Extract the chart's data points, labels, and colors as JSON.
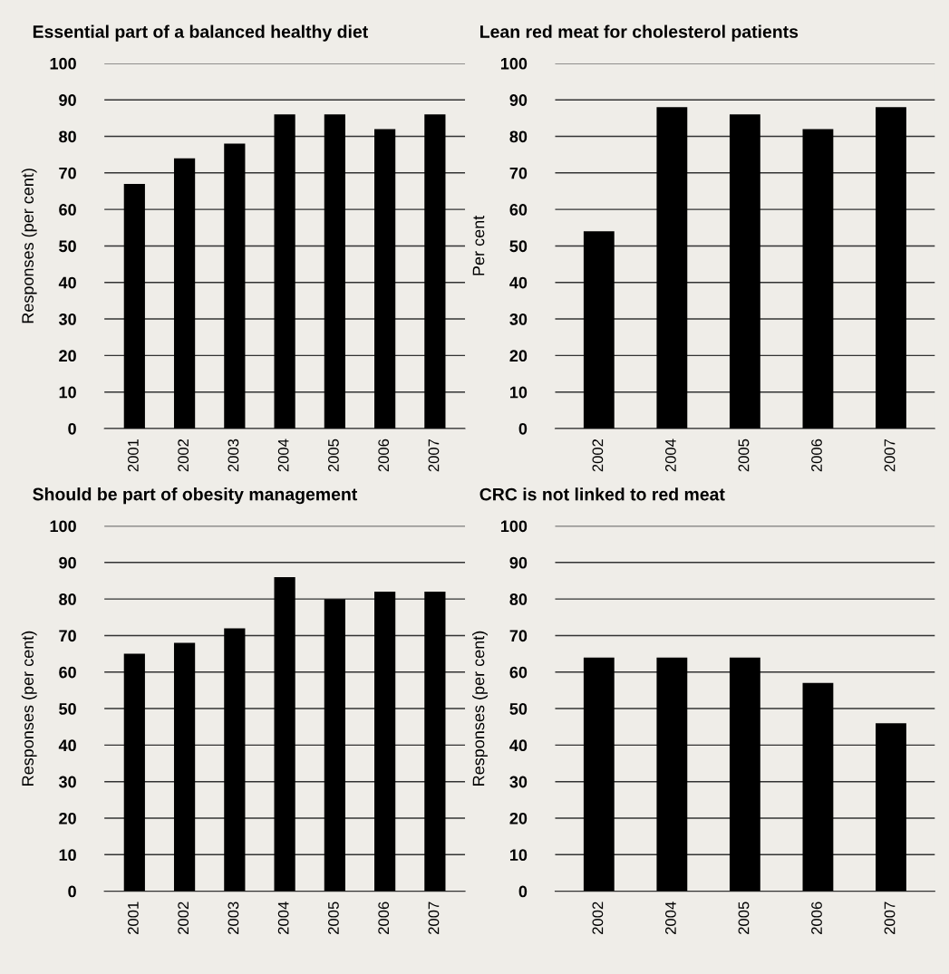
{
  "chart_data": [
    {
      "type": "bar",
      "title": "Essential part of a balanced healthy diet",
      "ylabel": "Responses (per cent)",
      "categories": [
        "2001",
        "2002",
        "2003",
        "2004",
        "2005",
        "2006",
        "2007"
      ],
      "values": [
        67,
        74,
        78,
        86,
        86,
        82,
        86
      ],
      "color": "#000000",
      "ylim": [
        0,
        100
      ],
      "yticks": [
        0,
        10,
        20,
        30,
        40,
        50,
        60,
        70,
        80,
        90,
        100
      ],
      "grid": "y"
    },
    {
      "type": "bar",
      "title": "Lean red meat for cholesterol patients",
      "ylabel": "Per cent",
      "categories": [
        "2002",
        "2004",
        "2005",
        "2006",
        "2007"
      ],
      "values": [
        54,
        88,
        86,
        82,
        88
      ],
      "color": "#000000",
      "ylim": [
        0,
        100
      ],
      "yticks": [
        0,
        10,
        20,
        30,
        40,
        50,
        60,
        70,
        80,
        90,
        100
      ],
      "grid": "y"
    },
    {
      "type": "bar",
      "title": "Should be part of obesity management",
      "ylabel": "Responses (per cent)",
      "categories": [
        "2001",
        "2002",
        "2003",
        "2004",
        "2005",
        "2006",
        "2007"
      ],
      "values": [
        65,
        68,
        72,
        86,
        80,
        82,
        82
      ],
      "color": "#000000",
      "ylim": [
        0,
        100
      ],
      "yticks": [
        0,
        10,
        20,
        30,
        40,
        50,
        60,
        70,
        80,
        90,
        100
      ],
      "grid": "y"
    },
    {
      "type": "bar",
      "title": "CRC is not linked to red meat",
      "ylabel": "Responses (per cent)",
      "categories": [
        "2002",
        "2004",
        "2005",
        "2006",
        "2007"
      ],
      "values": [
        64,
        64,
        64,
        57,
        46
      ],
      "color": "#000000",
      "ylim": [
        0,
        100
      ],
      "yticks": [
        0,
        10,
        20,
        30,
        40,
        50,
        60,
        70,
        80,
        90,
        100
      ],
      "grid": "y"
    }
  ]
}
